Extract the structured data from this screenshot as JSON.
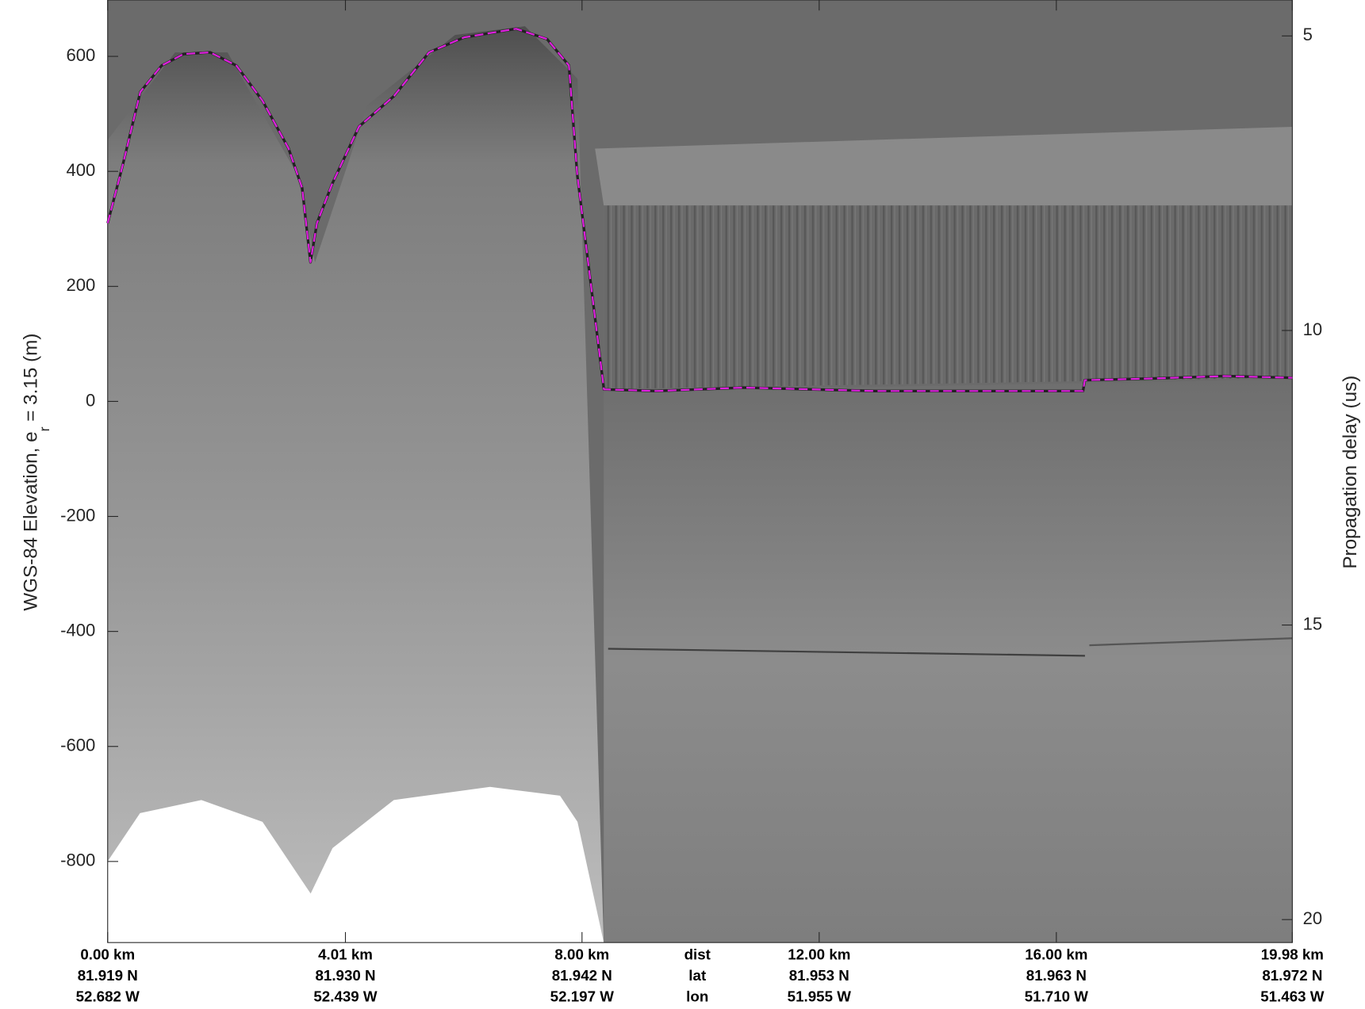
{
  "chart_data": {
    "type": "line",
    "xlabel_rows": [
      "dist",
      "lat",
      "lon"
    ],
    "ylabel": [
      "WGS-84 Elevation, e",
      "r",
      " = 3.15 (m)"
    ],
    "y2label": "Propagation delay (us)",
    "xlim": [
      0,
      19.98
    ],
    "xticks": [
      {
        "value": 0,
        "label": "0.00 km"
      },
      {
        "value": 4.01,
        "label": "4.01 km"
      },
      {
        "value": 8.0,
        "label": "8.00 km"
      },
      {
        "value": 12.0,
        "label": "12.00 km"
      },
      {
        "value": 16.0,
        "label": "16.00 km"
      },
      {
        "value": 19.98,
        "label": "19.98 km"
      }
    ],
    "lat_labels": [
      "81.919 N",
      "81.930 N",
      "81.942 N",
      "81.953 N",
      "81.963 N",
      "81.972 N"
    ],
    "lon_labels": [
      "52.682 W",
      "52.439 W",
      "52.197 W",
      "51.955 W",
      "51.710 W",
      "51.463 W"
    ],
    "ylim": [
      -941,
      698
    ],
    "yticks": [
      600,
      400,
      200,
      0,
      -200,
      -400,
      -600,
      -800
    ],
    "y2lim": [
      20.39,
      4.39
    ],
    "y2ticks": [
      5,
      10,
      15,
      20
    ],
    "x": [
      0,
      0.25,
      0.55,
      0.91,
      1.28,
      1.73,
      2.17,
      2.61,
      3.05,
      3.28,
      3.42,
      3.53,
      3.79,
      4.24,
      4.83,
      5.42,
      6.01,
      6.89,
      7.41,
      7.78,
      7.92,
      8.37,
      9.25,
      10.73,
      12.94,
      16.45,
      16.48,
      17.66,
      18.84,
      19.98
    ],
    "series": [
      {
        "color": "#e020e0",
        "values": [
          310,
          409,
          538,
          584,
          604,
          607,
          584,
          523,
          440,
          371,
          242,
          310,
          379,
          478,
          531,
          607,
          633,
          648,
          630,
          584,
          394,
          21,
          18,
          24,
          18,
          18,
          37,
          40,
          44,
          41
        ]
      }
    ]
  }
}
